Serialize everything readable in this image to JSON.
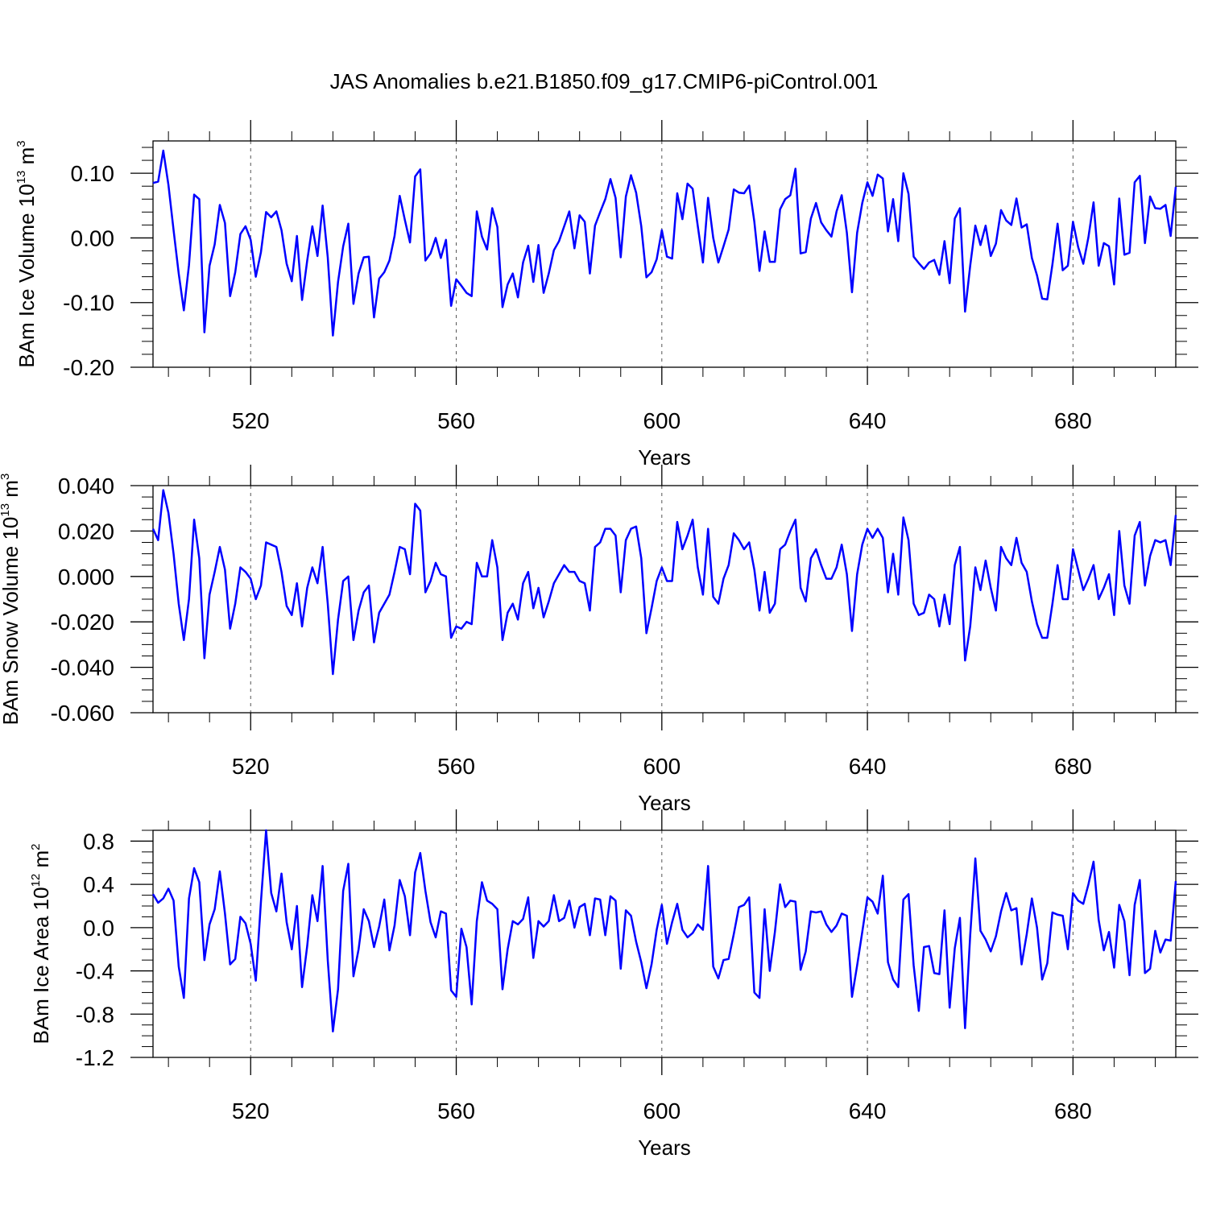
{
  "title": "JAS Anomalies b.e21.B1850.f09_g17.CMIP6-piControl.001",
  "chart_data": [
    {
      "type": "line",
      "title": "JAS Anomalies b.e21.B1850.f09_g17.CMIP6-piControl.001",
      "xlabel": "Years",
      "ylabel": "BAm Ice Volume 10",
      "ylabel_exponent": "13",
      "ylabel_unit": "m",
      "ylabel_unit_exponent": "3",
      "xlim": [
        501,
        700
      ],
      "ylim": [
        -0.2,
        0.15
      ],
      "x_ticks": [
        520,
        560,
        600,
        640,
        680
      ],
      "x_tick_labels": [
        "520",
        "560",
        "600",
        "640",
        "680"
      ],
      "y_ticks": [
        -0.2,
        -0.1,
        0.0,
        0.1
      ],
      "y_tick_labels": [
        "-0.20",
        "-0.10",
        "0.00",
        "0.10"
      ],
      "y_minor_step": 0.02,
      "x_minor_step": 8,
      "grid": "vertical dashed at major x ticks",
      "color": "#0000ff",
      "x_start": 501,
      "values": [
        0.085,
        0.087,
        0.135,
        0.082,
        0.012,
        -0.055,
        -0.112,
        -0.042,
        0.067,
        0.06,
        -0.146,
        -0.043,
        -0.01,
        0.051,
        0.023,
        -0.09,
        -0.053,
        0.006,
        0.018,
        -0.003,
        -0.06,
        -0.022,
        0.04,
        0.032,
        0.041,
        0.012,
        -0.04,
        -0.067,
        0.003,
        -0.096,
        -0.035,
        0.018,
        -0.028,
        0.05,
        -0.03,
        -0.151,
        -0.068,
        -0.013,
        0.022,
        -0.102,
        -0.055,
        -0.03,
        -0.029,
        -0.123,
        -0.063,
        -0.053,
        -0.035,
        0.003,
        0.065,
        0.028,
        -0.007,
        0.095,
        0.106,
        -0.035,
        -0.024,
        0.0,
        -0.031,
        -0.003,
        -0.105,
        -0.064,
        -0.074,
        -0.085,
        -0.09,
        0.041,
        0.002,
        -0.018,
        0.046,
        0.017,
        -0.107,
        -0.072,
        -0.055,
        -0.092,
        -0.038,
        -0.012,
        -0.068,
        -0.011,
        -0.085,
        -0.055,
        -0.019,
        -0.005,
        0.018,
        0.041,
        -0.016,
        0.035,
        0.025,
        -0.055,
        0.019,
        0.04,
        0.06,
        0.091,
        0.062,
        -0.03,
        0.064,
        0.097,
        0.07,
        0.018,
        -0.061,
        -0.053,
        -0.033,
        0.012,
        -0.029,
        -0.032,
        0.069,
        0.029,
        0.084,
        0.076,
        0.018,
        -0.038,
        0.062,
        0.0,
        -0.038,
        -0.013,
        0.013,
        0.075,
        0.07,
        0.069,
        0.081,
        0.025,
        -0.051,
        0.01,
        -0.037,
        -0.037,
        0.044,
        0.06,
        0.066,
        0.107,
        -0.024,
        -0.022,
        0.03,
        0.054,
        0.024,
        0.012,
        0.002,
        0.041,
        0.066,
        0.008,
        -0.084,
        0.008,
        0.054,
        0.086,
        0.065,
        0.098,
        0.092,
        0.01,
        0.06,
        -0.005,
        0.1,
        0.068,
        -0.029,
        -0.039,
        -0.048,
        -0.038,
        -0.034,
        -0.057,
        -0.005,
        -0.07,
        0.03,
        0.046,
        -0.114,
        -0.043,
        0.019,
        -0.011,
        0.019,
        -0.028,
        -0.009,
        0.043,
        0.027,
        0.02,
        0.061,
        0.016,
        0.021,
        -0.031,
        -0.058,
        -0.094,
        -0.095,
        -0.041,
        0.022,
        -0.05,
        -0.043,
        0.025,
        -0.014,
        -0.04,
        0.001,
        0.055,
        -0.043,
        -0.008,
        -0.013,
        -0.072,
        0.061,
        -0.026,
        -0.023,
        0.086,
        0.096,
        -0.008,
        0.064,
        0.046,
        0.045,
        0.051,
        0.003,
        0.079
      ]
    },
    {
      "type": "line",
      "xlabel": "Years",
      "ylabel": "BAm Snow Volume 10",
      "ylabel_exponent": "13",
      "ylabel_unit": "m",
      "ylabel_unit_exponent": "3",
      "xlim": [
        501,
        700
      ],
      "ylim": [
        -0.06,
        0.04
      ],
      "x_ticks": [
        520,
        560,
        600,
        640,
        680
      ],
      "x_tick_labels": [
        "520",
        "560",
        "600",
        "640",
        "680"
      ],
      "y_ticks": [
        -0.06,
        -0.04,
        -0.02,
        0.0,
        0.02,
        0.04
      ],
      "y_tick_labels": [
        "-0.060",
        "-0.040",
        "-0.020",
        "0.000",
        "0.020",
        "0.040"
      ],
      "y_minor_step": 0.005,
      "x_minor_step": 8,
      "grid": "vertical dashed at major x ticks",
      "color": "#0000ff",
      "x_start": 501,
      "values": [
        0.021,
        0.016,
        0.038,
        0.028,
        0.01,
        -0.012,
        -0.028,
        -0.01,
        0.025,
        0.008,
        -0.036,
        -0.008,
        0.002,
        0.013,
        0.003,
        -0.023,
        -0.012,
        0.004,
        0.002,
        -0.001,
        -0.01,
        -0.004,
        0.015,
        0.014,
        0.013,
        0.002,
        -0.013,
        -0.017,
        -0.003,
        -0.022,
        -0.005,
        0.004,
        -0.003,
        0.013,
        -0.012,
        -0.043,
        -0.019,
        -0.002,
        0.0,
        -0.028,
        -0.015,
        -0.007,
        -0.004,
        -0.029,
        -0.016,
        -0.012,
        -0.008,
        0.002,
        0.013,
        0.012,
        0.001,
        0.032,
        0.029,
        -0.007,
        -0.002,
        0.006,
        0.001,
        0.0,
        -0.027,
        -0.022,
        -0.023,
        -0.02,
        -0.021,
        0.006,
        0.0,
        0.0,
        0.016,
        0.004,
        -0.028,
        -0.016,
        -0.012,
        -0.019,
        -0.003,
        0.002,
        -0.014,
        -0.005,
        -0.018,
        -0.011,
        -0.003,
        0.001,
        0.005,
        0.002,
        0.002,
        -0.002,
        -0.003,
        -0.015,
        0.013,
        0.015,
        0.021,
        0.021,
        0.018,
        -0.007,
        0.016,
        0.021,
        0.022,
        0.008,
        -0.025,
        -0.014,
        -0.002,
        0.004,
        -0.002,
        -0.002,
        0.024,
        0.012,
        0.018,
        0.025,
        0.004,
        -0.008,
        0.021,
        -0.009,
        -0.012,
        -0.001,
        0.005,
        0.019,
        0.016,
        0.012,
        0.015,
        0.003,
        -0.015,
        0.002,
        -0.016,
        -0.012,
        0.012,
        0.014,
        0.02,
        0.025,
        -0.005,
        -0.011,
        0.008,
        0.012,
        0.005,
        -0.001,
        -0.001,
        0.004,
        0.014,
        0.001,
        -0.024,
        0.001,
        0.014,
        0.021,
        0.017,
        0.021,
        0.017,
        -0.007,
        0.01,
        -0.008,
        0.026,
        0.016,
        -0.012,
        -0.017,
        -0.016,
        -0.008,
        -0.01,
        -0.022,
        -0.008,
        -0.021,
        0.005,
        0.013,
        -0.037,
        -0.022,
        0.004,
        -0.006,
        0.007,
        -0.005,
        -0.015,
        0.013,
        0.008,
        0.005,
        0.017,
        0.006,
        0.002,
        -0.011,
        -0.021,
        -0.027,
        -0.027,
        -0.012,
        0.005,
        -0.01,
        -0.01,
        0.012,
        0.003,
        -0.006,
        -0.001,
        0.005,
        -0.01,
        -0.005,
        0.001,
        -0.017,
        0.02,
        -0.004,
        -0.012,
        0.018,
        0.024,
        -0.004,
        0.009,
        0.016,
        0.015,
        0.016,
        0.005,
        0.027
      ]
    },
    {
      "type": "line",
      "xlabel": "Years",
      "ylabel": "BAm Ice Area 10",
      "ylabel_exponent": "12",
      "ylabel_unit": "m",
      "ylabel_unit_exponent": "2",
      "xlim": [
        501,
        700
      ],
      "ylim": [
        -1.2,
        0.9
      ],
      "x_ticks": [
        520,
        560,
        600,
        640,
        680
      ],
      "x_tick_labels": [
        "520",
        "560",
        "600",
        "640",
        "680"
      ],
      "y_ticks": [
        -1.2,
        -0.8,
        -0.4,
        0.0,
        0.4,
        0.8
      ],
      "y_tick_labels": [
        "-1.2",
        "-0.8",
        "-0.4",
        "0.0",
        "0.4",
        "0.8"
      ],
      "y_minor_step": 0.1,
      "x_minor_step": 8,
      "grid": "vertical dashed at major x ticks",
      "color": "#0000ff",
      "x_start": 501,
      "values": [
        0.31,
        0.23,
        0.27,
        0.36,
        0.25,
        -0.36,
        -0.65,
        0.27,
        0.55,
        0.42,
        -0.3,
        0.03,
        0.17,
        0.52,
        0.13,
        -0.34,
        -0.29,
        0.1,
        0.04,
        -0.15,
        -0.49,
        0.24,
        0.9,
        0.32,
        0.15,
        0.5,
        0.05,
        -0.2,
        0.2,
        -0.55,
        -0.17,
        0.3,
        0.06,
        0.57,
        -0.3,
        -0.96,
        -0.57,
        0.34,
        0.59,
        -0.45,
        -0.2,
        0.17,
        0.06,
        -0.18,
        0.01,
        0.26,
        -0.21,
        0.02,
        0.44,
        0.29,
        -0.07,
        0.51,
        0.69,
        0.34,
        0.05,
        -0.09,
        0.15,
        0.13,
        -0.58,
        -0.64,
        -0.01,
        -0.18,
        -0.71,
        0.06,
        0.42,
        0.25,
        0.22,
        0.17,
        -0.57,
        -0.2,
        0.06,
        0.03,
        0.08,
        0.28,
        -0.28,
        0.06,
        0.01,
        0.06,
        0.3,
        0.06,
        0.09,
        0.25,
        0.0,
        0.19,
        0.22,
        -0.07,
        0.27,
        0.26,
        -0.07,
        0.29,
        0.25,
        -0.38,
        0.16,
        0.11,
        -0.13,
        -0.32,
        -0.56,
        -0.34,
        -0.02,
        0.21,
        -0.15,
        0.05,
        0.22,
        -0.02,
        -0.09,
        -0.05,
        0.03,
        -0.02,
        0.57,
        -0.36,
        -0.47,
        -0.3,
        -0.29,
        -0.06,
        0.19,
        0.21,
        0.28,
        -0.6,
        -0.65,
        0.17,
        -0.4,
        -0.04,
        0.4,
        0.19,
        0.25,
        0.24,
        -0.39,
        -0.22,
        0.15,
        0.14,
        0.15,
        0.03,
        -0.04,
        0.02,
        0.13,
        0.11,
        -0.64,
        -0.35,
        -0.04,
        0.28,
        0.24,
        0.13,
        0.48,
        -0.32,
        -0.48,
        -0.55,
        0.26,
        0.31,
        -0.35,
        -0.77,
        -0.18,
        -0.17,
        -0.42,
        -0.43,
        0.16,
        -0.74,
        -0.19,
        0.09,
        -0.93,
        -0.07,
        0.64,
        -0.03,
        -0.11,
        -0.22,
        -0.08,
        0.15,
        0.32,
        0.16,
        0.18,
        -0.34,
        -0.06,
        0.27,
        0.0,
        -0.48,
        -0.33,
        0.14,
        0.12,
        0.11,
        -0.2,
        0.32,
        0.25,
        0.22,
        0.4,
        0.61,
        0.07,
        -0.21,
        -0.04,
        -0.37,
        0.21,
        0.06,
        -0.44,
        0.21,
        0.44,
        -0.42,
        -0.38,
        -0.03,
        -0.23,
        -0.11,
        -0.12,
        0.43
      ]
    }
  ]
}
